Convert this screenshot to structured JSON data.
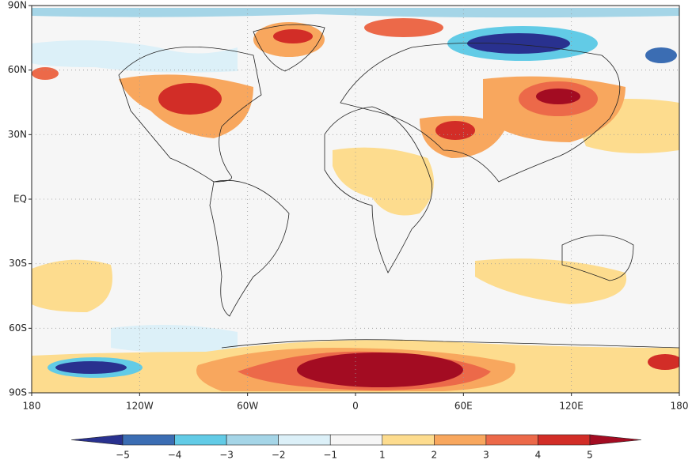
{
  "map": {
    "lonlim": [
      -180,
      180
    ],
    "latlim": [
      -90,
      90
    ],
    "grid": true,
    "lat_ticks": [
      {
        "value": 90,
        "label": "90N"
      },
      {
        "value": 60,
        "label": "60N"
      },
      {
        "value": 30,
        "label": "30N"
      },
      {
        "value": 0,
        "label": "EQ"
      },
      {
        "value": -30,
        "label": "30S"
      },
      {
        "value": -60,
        "label": "60S"
      },
      {
        "value": -90,
        "label": "90S"
      }
    ],
    "lon_ticks": [
      {
        "value": -180,
        "label": "180"
      },
      {
        "value": -120,
        "label": "120W"
      },
      {
        "value": -60,
        "label": "60W"
      },
      0,
      {
        "value": 60,
        "label": "60E"
      },
      {
        "value": 120,
        "label": "120E"
      },
      180
    ],
    "colorbar": {
      "ticks": [
        {
          "value": -5,
          "label": "−5"
        },
        {
          "value": -4,
          "label": "−4"
        },
        {
          "value": -3,
          "label": "−3"
        },
        {
          "value": -2,
          "label": "−2"
        },
        {
          "value": -1,
          "label": "−1"
        },
        1,
        2,
        3,
        4,
        5
      ],
      "colors": [
        "#29318f",
        "#3b6db3",
        "#62cbe6",
        "#a5d5e7",
        "#dcf0f8",
        "#f6f6f6",
        "#fddc8e",
        "#f8a75e",
        "#ec6949",
        "#d22d27",
        "#a30c22"
      ]
    }
  }
}
